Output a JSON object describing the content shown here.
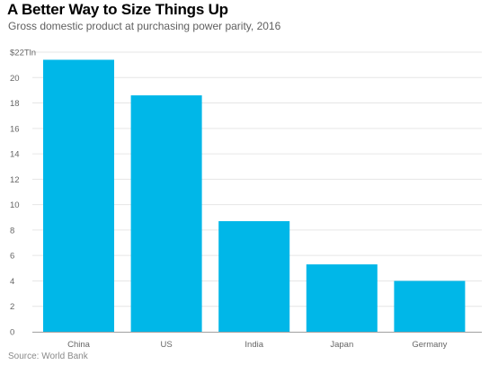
{
  "header": {
    "title": "A Better Way to Size Things Up",
    "subtitle": "Gross domestic product at purchasing power parity, 2016"
  },
  "footer": {
    "source": "Source: World Bank"
  },
  "colors": {
    "bar": "#00b7e8",
    "grid": "#e6e6e6",
    "axis": "#a0a0a0"
  },
  "chart_data": {
    "type": "bar",
    "title": "A Better Way to Size Things Up",
    "subtitle": "Gross domestic product at purchasing power parity, 2016",
    "xlabel": "",
    "ylabel": "",
    "categories": [
      "China",
      "US",
      "India",
      "Japan",
      "Germany"
    ],
    "values": [
      21.4,
      18.6,
      8.7,
      5.3,
      4.0
    ],
    "ylim": [
      0,
      22
    ],
    "yticks": [
      0,
      2,
      4,
      6,
      8,
      10,
      12,
      14,
      16,
      18,
      20,
      22
    ],
    "ytick_labels": [
      "0",
      "2",
      "4",
      "6",
      "8",
      "10",
      "12",
      "14",
      "16",
      "18",
      "20",
      "$22Tln"
    ],
    "grid": true,
    "legend": "none"
  }
}
